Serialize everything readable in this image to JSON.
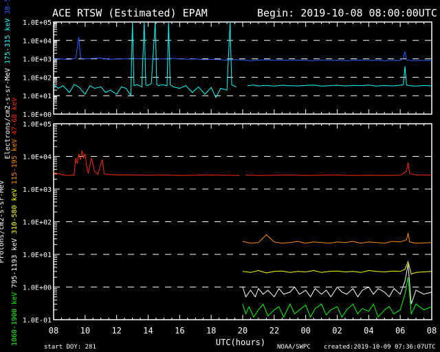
{
  "title": "ACE RTSW (Estimated) EPAM",
  "begin": "Begin: 2019-10-08 08:00:00UTC",
  "footer": {
    "start_doy": "start DOY:  281",
    "agency": "NOAA/SWPC",
    "created": "created:2019-10-09 07:36:07UTC"
  },
  "chart_data": [
    {
      "type": "line",
      "panel": "electrons",
      "ylabel": "Electrons/cm2-s-sr-MeV",
      "yscale": "log",
      "ylim": [
        1,
        100000
      ],
      "ytick_labels": [
        "1.0E+00",
        "1.0E+01",
        "1.0E+02",
        "1.0E+03",
        "1.0E+04",
        "1.0E+05"
      ],
      "xlim_hours": [
        0,
        24
      ],
      "series": [
        {
          "name": "38-53 keV",
          "color": "#2060ff",
          "x": [
            0,
            0.5,
            1,
            1.4,
            1.5,
            1.6,
            1.7,
            1.8,
            2,
            2.5,
            3,
            3.5,
            4,
            4.5,
            5,
            5.5,
            6,
            6.5,
            7,
            7.5,
            8,
            8.5,
            9,
            9.5,
            10,
            10.5,
            11,
            11.5,
            12,
            12.5,
            13,
            13.5,
            14,
            14.5,
            15,
            15.5,
            16,
            16.5,
            17,
            17.5,
            18,
            18.5,
            19,
            19.5,
            20,
            20.5,
            21,
            21.5,
            22,
            22.2,
            22.3,
            22.4,
            22.6,
            23,
            23.5,
            24
          ],
          "y": [
            950,
            1000,
            900,
            1100,
            4000,
            15000,
            1200,
            950,
            1000,
            1050,
            1100,
            950,
            1000,
            980,
            1050,
            1000,
            1000,
            950,
            1000,
            1050,
            1000,
            950,
            1000,
            900,
            950,
            900,
            850,
            900,
            850,
            800,
            850,
            880,
            830,
            850,
            820,
            850,
            830,
            800,
            850,
            820,
            840,
            800,
            830,
            850,
            820,
            840,
            800,
            830,
            820,
            1100,
            2500,
            900,
            820,
            800,
            830,
            820
          ]
        },
        {
          "name": "175-315 keV",
          "color": "#00ffff",
          "x": [
            0,
            0.3,
            0.6,
            1,
            1.3,
            1.6,
            2,
            2.3,
            2.6,
            3,
            3.3,
            3.6,
            4,
            4.3,
            4.6,
            4.9,
            5.0,
            5.1,
            5.3,
            5.6,
            5.75,
            5.85,
            5.95,
            6.2,
            6.45,
            6.55,
            6.65,
            6.9,
            7.2,
            7.3,
            7.4,
            7.6,
            8,
            8.4,
            8.8,
            9.2,
            9.6,
            10,
            10.3,
            10.6,
            11,
            11.2,
            11.3,
            11.4,
            11.6,
            null,
            12.3,
            12.7,
            13,
            13.5,
            14,
            14.5,
            15,
            15.5,
            16,
            16.5,
            17,
            17.5,
            18,
            18.5,
            19,
            19.5,
            20,
            20.5,
            21,
            21.5,
            22,
            22.2,
            22.3,
            22.4,
            22.6,
            23,
            23.5,
            24
          ],
          "y": [
            40,
            25,
            35,
            15,
            40,
            30,
            12,
            35,
            25,
            30,
            15,
            20,
            12,
            30,
            25,
            10,
            100000,
            35,
            40,
            30,
            100000,
            40,
            35,
            45,
            100000,
            40,
            35,
            40,
            35,
            100000,
            40,
            30,
            25,
            35,
            15,
            30,
            12,
            28,
            8,
            25,
            20,
            100000,
            40,
            35,
            30,
            null,
            35,
            38,
            34,
            36,
            33,
            37,
            35,
            34,
            36,
            38,
            33,
            35,
            37,
            34,
            36,
            35,
            38,
            33,
            36,
            34,
            37,
            40,
            400,
            38,
            35,
            33,
            36,
            34
          ]
        }
      ]
    },
    {
      "type": "line",
      "panel": "protons",
      "ylabel": "Protons/cm2-s-sr-MeV",
      "yscale": "log",
      "ylim": [
        0.1,
        100000
      ],
      "ytick_labels": [
        "1.0E-01",
        "1.0E+00",
        "1.0E+01",
        "1.0E+02",
        "1.0E+03",
        "1.0E+04",
        "1.0E+05"
      ],
      "xlabel": "UTC(hours)",
      "xtick_labels": [
        "08",
        "10",
        "12",
        "14",
        "16",
        "18",
        "20",
        "22",
        "00",
        "02",
        "04",
        "06",
        "08"
      ],
      "series": [
        {
          "name": "47-68 keV",
          "color": "#ff2a00",
          "x": [
            0,
            0.1,
            0.3,
            0.6,
            1,
            1.3,
            1.4,
            1.5,
            1.6,
            1.7,
            1.8,
            1.9,
            2,
            2.1,
            2.2,
            2.4,
            2.6,
            2.8,
            3,
            3.1,
            3.2,
            3.4,
            4,
            5,
            6,
            7,
            8,
            9,
            10,
            11,
            11.8,
            null,
            12.2,
            13,
            14,
            15,
            16,
            17,
            18,
            19,
            20,
            21,
            22,
            22.4,
            22.5,
            22.6,
            23,
            24
          ],
          "y": [
            3500,
            2800,
            3000,
            2700,
            2600,
            2700,
            9000,
            6000,
            12000,
            8000,
            15000,
            9000,
            12000,
            5000,
            3000,
            9000,
            3500,
            2800,
            6000,
            8000,
            3000,
            2800,
            2700,
            2700,
            2650,
            2700,
            2600,
            2650,
            2700,
            2650,
            2600,
            null,
            2700,
            2600,
            2650,
            2700,
            2600,
            2650,
            2700,
            2600,
            2650,
            2600,
            2650,
            3500,
            6500,
            3000,
            2700,
            2650
          ]
        },
        {
          "name": "115-195 keV",
          "color": "#ff8c00",
          "x": [
            12,
            12.5,
            13,
            13.5,
            14,
            14.5,
            15,
            15.5,
            16,
            16.5,
            17,
            17.5,
            18,
            18.5,
            19,
            19.5,
            20,
            20.5,
            21,
            21.5,
            22,
            22.4,
            22.5,
            22.6,
            23,
            24
          ],
          "y": [
            25,
            22,
            23,
            40,
            24,
            22,
            23,
            25,
            22,
            24,
            23,
            22,
            24,
            23,
            25,
            22,
            24,
            23,
            22,
            25,
            24,
            28,
            45,
            24,
            22,
            23
          ]
        },
        {
          "name": "310-580 keV",
          "color": "#ffff00",
          "x": [
            12,
            12.5,
            13,
            13.5,
            14,
            14.5,
            15,
            15.5,
            16,
            16.5,
            17,
            17.5,
            18,
            18.5,
            19,
            19.5,
            20,
            20.5,
            21,
            21.5,
            22,
            22.3,
            22.5,
            22.7,
            23,
            24
          ],
          "y": [
            3,
            2.8,
            3.2,
            2.7,
            3,
            3.1,
            2.8,
            3,
            2.9,
            3.2,
            2.8,
            3,
            3.1,
            2.9,
            3,
            2.8,
            3.2,
            3,
            2.9,
            3.1,
            3,
            3.5,
            6,
            2.5,
            2.8,
            3
          ]
        },
        {
          "name": "795-1193 keV",
          "color": "#ffffff",
          "x": [
            12,
            12.2,
            12.5,
            12.8,
            13,
            13.3,
            13.6,
            14,
            14.3,
            14.6,
            15,
            15.3,
            15.6,
            16,
            16.3,
            16.6,
            17,
            17.3,
            17.6,
            18,
            18.3,
            18.6,
            19,
            19.3,
            19.6,
            20,
            20.3,
            20.6,
            21,
            21.3,
            21.6,
            22,
            22.3,
            22.5,
            22.7,
            23,
            23.5,
            24
          ],
          "y": [
            1,
            0.5,
            0.8,
            0.5,
            0.9,
            0.6,
            0.8,
            0.5,
            0.9,
            0.6,
            0.7,
            1,
            0.6,
            0.8,
            0.5,
            0.9,
            0.6,
            0.8,
            0.5,
            1,
            0.7,
            0.6,
            0.9,
            0.5,
            0.8,
            1,
            0.6,
            0.9,
            0.7,
            0.5,
            0.9,
            0.6,
            1.5,
            5,
            0.3,
            0.8,
            0.6,
            0.7
          ]
        },
        {
          "name": "1060-1900 keV",
          "color": "#00ff00",
          "x": [
            12,
            12.2,
            12.4,
            12.7,
            13,
            13.3,
            13.6,
            14,
            14.3,
            14.6,
            15,
            15.3,
            15.6,
            16,
            16.3,
            16.6,
            17,
            17.3,
            17.6,
            18,
            18.3,
            18.6,
            19,
            19.3,
            19.6,
            20,
            20.3,
            20.6,
            21,
            21.3,
            21.6,
            22,
            22.3,
            22.5,
            22.7,
            23,
            23.5,
            24
          ],
          "y": [
            0.3,
            0.15,
            0.25,
            0.12,
            0.2,
            0.3,
            0.13,
            0.2,
            0.25,
            0.12,
            0.3,
            0.15,
            0.2,
            0.28,
            0.12,
            0.22,
            0.3,
            0.14,
            0.2,
            0.25,
            0.12,
            0.2,
            0.3,
            0.15,
            0.22,
            0.18,
            0.3,
            0.12,
            0.2,
            0.25,
            0.15,
            0.2,
            0.6,
            2,
            0.15,
            0.3,
            0.2,
            0.25
          ]
        }
      ]
    }
  ]
}
